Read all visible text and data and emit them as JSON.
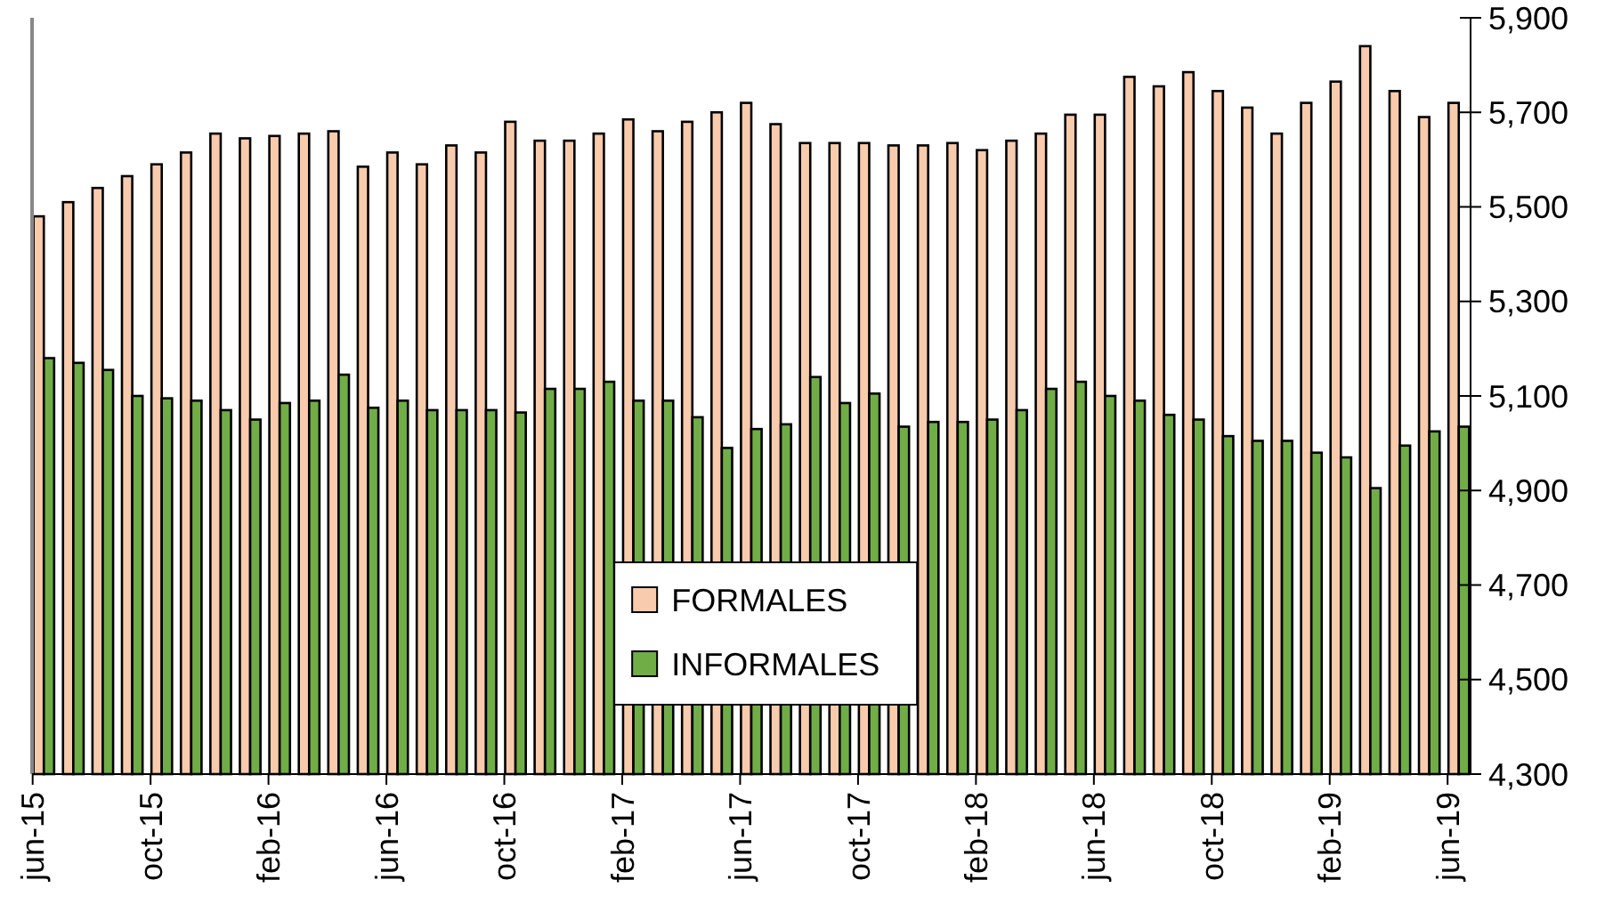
{
  "chart_data": {
    "type": "bar",
    "categories": [
      "jun-15",
      null,
      null,
      null,
      "oct-15",
      null,
      null,
      null,
      "feb-16",
      null,
      null,
      null,
      "jun-16",
      null,
      null,
      null,
      "oct-16",
      null,
      null,
      null,
      "feb-17",
      null,
      null,
      null,
      "jun-17",
      null,
      null,
      null,
      "oct-17",
      null,
      null,
      null,
      "feb-18",
      null,
      null,
      null,
      "jun-18",
      null,
      null,
      null,
      "oct-18",
      null,
      null,
      null,
      "feb-19",
      null,
      null,
      null,
      "jun-19"
    ],
    "series": [
      {
        "name": "FORMALES",
        "color": "#f8cbad",
        "values": [
          5480,
          5510,
          5540,
          5565,
          5590,
          5615,
          5655,
          5645,
          5650,
          5655,
          5660,
          5585,
          5615,
          5590,
          5630,
          5615,
          5680,
          5640,
          5640,
          5655,
          5685,
          5660,
          5680,
          5700,
          5720,
          5675,
          5635,
          5635,
          5635,
          5630,
          5630,
          5635,
          5620,
          5640,
          5655,
          5695,
          5695,
          5775,
          5755,
          5785,
          5745,
          5710,
          5655,
          5720,
          5765,
          5840,
          5745,
          5690,
          5720
        ]
      },
      {
        "name": "INFORMALES",
        "color": "#70ad47",
        "values": [
          5180,
          5170,
          5155,
          5100,
          5095,
          5090,
          5070,
          5050,
          5085,
          5090,
          5145,
          5075,
          5090,
          5070,
          5070,
          5070,
          5065,
          5115,
          5115,
          5130,
          5090,
          5090,
          5055,
          4990,
          5030,
          5040,
          5140,
          5085,
          5105,
          5035,
          5045,
          5045,
          5050,
          5070,
          5115,
          5130,
          5100,
          5090,
          5060,
          5050,
          5015,
          5005,
          5005,
          4980,
          4970,
          4905,
          4995,
          5025,
          5035
        ]
      }
    ],
    "ylim": [
      4300,
      5900
    ],
    "yticks": [
      {
        "value": 4300,
        "label": "4,300"
      },
      {
        "value": 4500,
        "label": "4,500"
      },
      {
        "value": 4700,
        "label": "4,700"
      },
      {
        "value": 4900,
        "label": "4,900"
      },
      {
        "value": 5100,
        "label": "5,100"
      },
      {
        "value": 5300,
        "label": "5,300"
      },
      {
        "value": 5500,
        "label": "5,500"
      },
      {
        "value": 5700,
        "label": "5,700"
      },
      {
        "value": 5900,
        "label": "5,900"
      }
    ],
    "grid": false,
    "legend": "bottom"
  }
}
